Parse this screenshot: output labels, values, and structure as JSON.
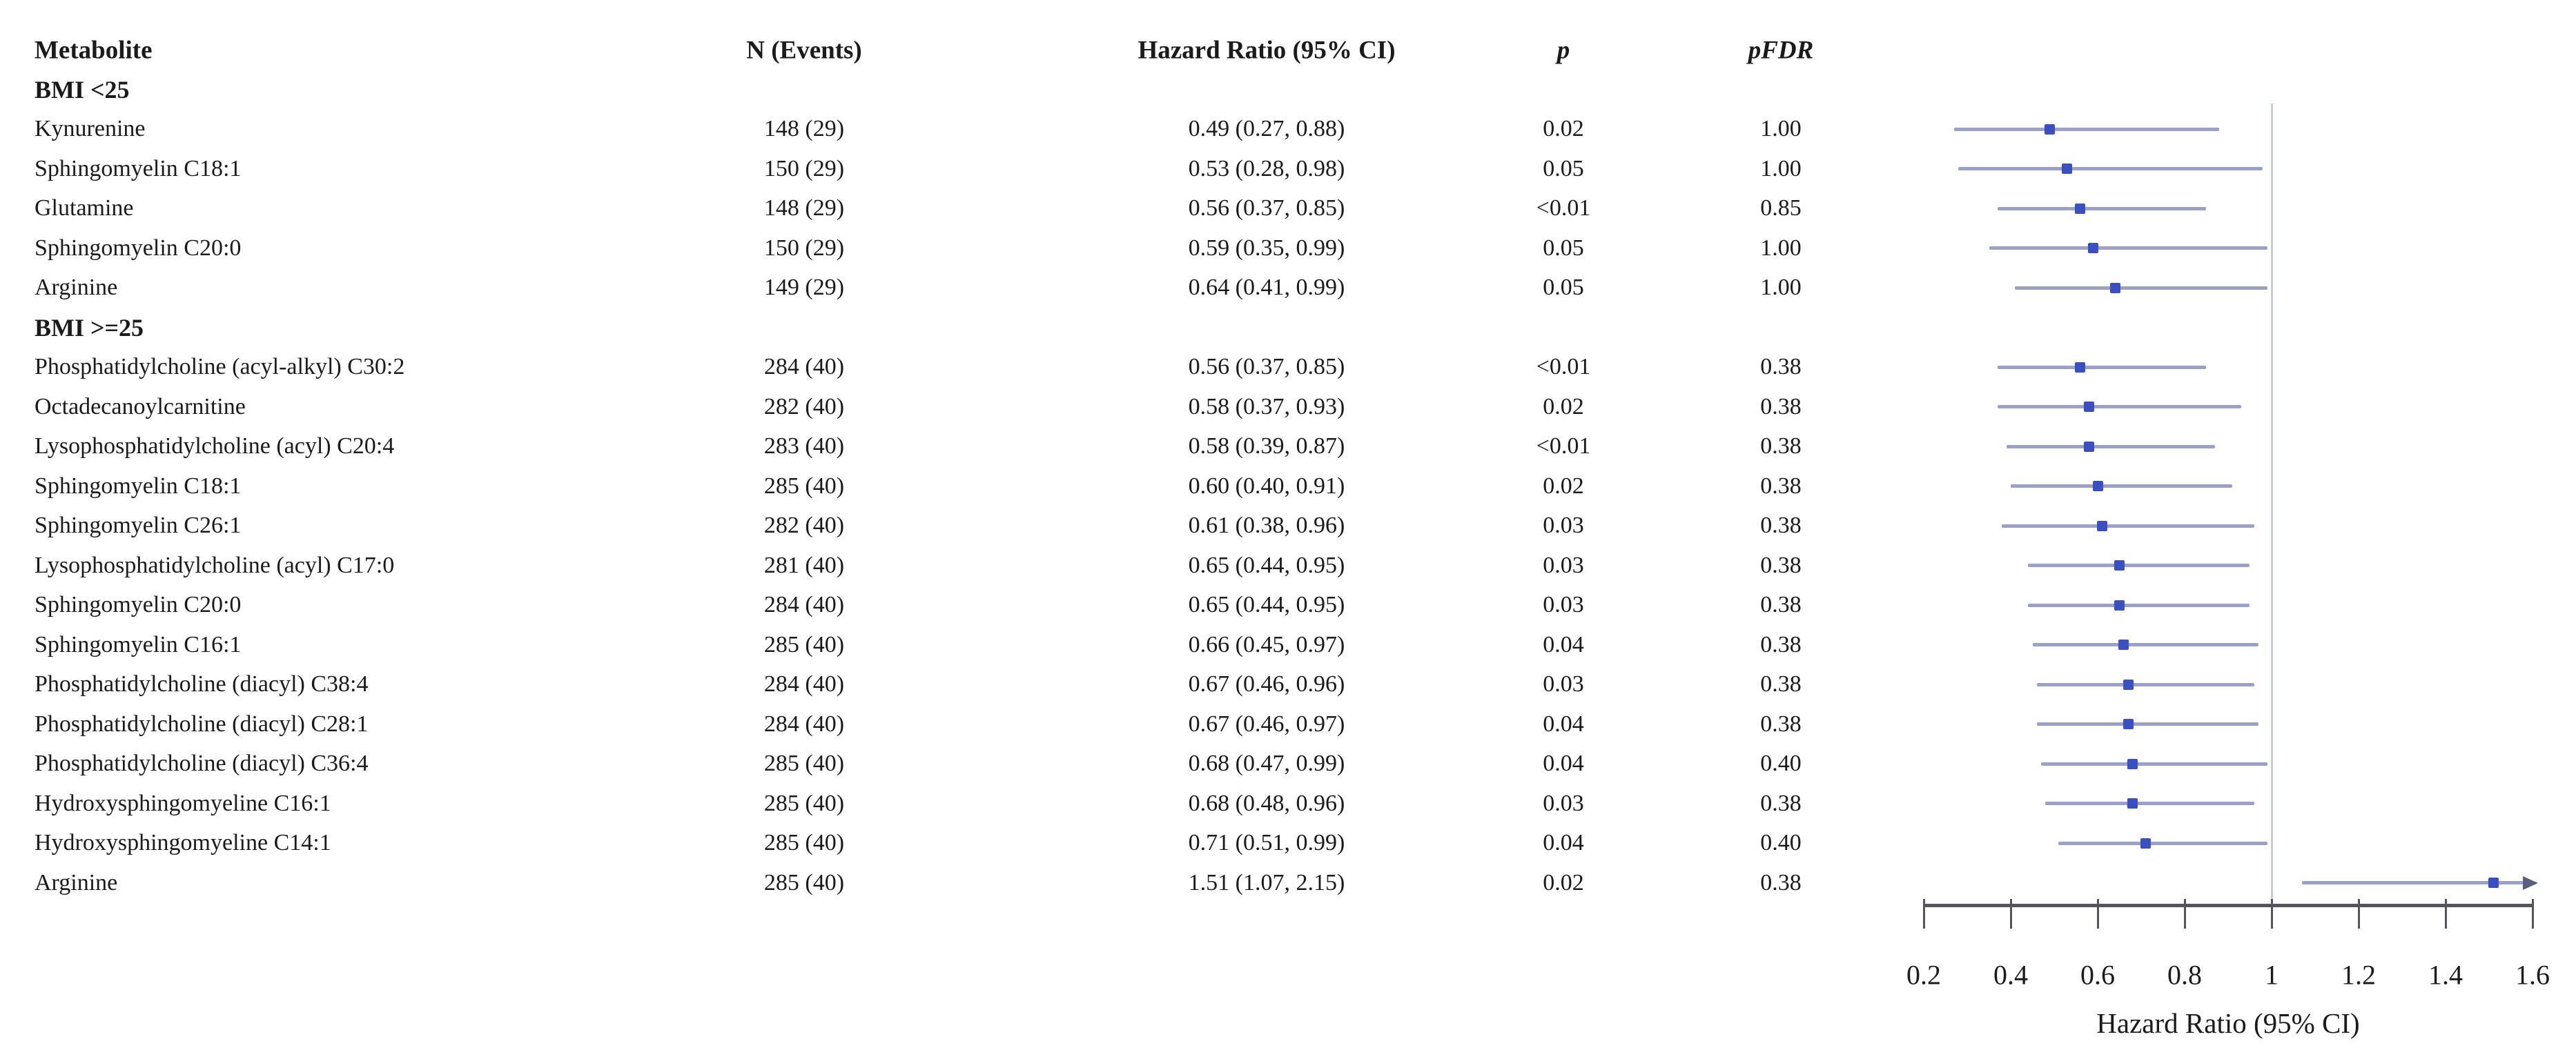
{
  "table_header": {
    "metabolite": "Metabolite",
    "n_events": "N (Events)",
    "hazard_ratio": "Hazard Ratio (95% CI)",
    "p": "p",
    "pfdr": "pFDR"
  },
  "colors": {
    "marker": "#3a50c2",
    "ci_line": "#9aa0c8",
    "arrow": "#5a5f80",
    "reference_line": "#c9cbd4",
    "axis": "#55565c",
    "text": "#1b1b1b"
  },
  "chart_data": {
    "type": "scatter",
    "subtype": "forest-plot",
    "title": "",
    "xlabel": "Hazard Ratio (95% CI)",
    "xlim": [
      0.2,
      1.6
    ],
    "xticks": [
      0.2,
      0.4,
      0.6,
      0.8,
      1,
      1.2,
      1.4,
      1.6
    ],
    "tick_labels": [
      "0.2",
      "0.4",
      "0.6",
      "0.8",
      "1",
      "1.2",
      "1.4",
      "1.6"
    ],
    "reference_line": 1.0,
    "legend": "none",
    "grid": false,
    "groups": [
      {
        "label": "BMI <25",
        "rows": [
          {
            "metabolite": "Kynurenine",
            "n_events": "148 (29)",
            "hr_ci_text": "0.49 (0.27, 0.88)",
            "p": "0.02",
            "pfdr": "1.00",
            "hr": 0.49,
            "ci_low": 0.27,
            "ci_high": 0.88,
            "clipped_right": false
          },
          {
            "metabolite": "Sphingomyelin C18:1",
            "n_events": "150 (29)",
            "hr_ci_text": "0.53 (0.28, 0.98)",
            "p": "0.05",
            "pfdr": "1.00",
            "hr": 0.53,
            "ci_low": 0.28,
            "ci_high": 0.98,
            "clipped_right": false
          },
          {
            "metabolite": "Glutamine",
            "n_events": "148 (29)",
            "hr_ci_text": "0.56 (0.37, 0.85)",
            "p": "<0.01",
            "pfdr": "0.85",
            "hr": 0.56,
            "ci_low": 0.37,
            "ci_high": 0.85,
            "clipped_right": false
          },
          {
            "metabolite": "Sphingomyelin C20:0",
            "n_events": "150 (29)",
            "hr_ci_text": "0.59 (0.35, 0.99)",
            "p": "0.05",
            "pfdr": "1.00",
            "hr": 0.59,
            "ci_low": 0.35,
            "ci_high": 0.99,
            "clipped_right": false
          },
          {
            "metabolite": "Arginine",
            "n_events": "149 (29)",
            "hr_ci_text": "0.64 (0.41, 0.99)",
            "p": "0.05",
            "pfdr": "1.00",
            "hr": 0.64,
            "ci_low": 0.41,
            "ci_high": 0.99,
            "clipped_right": false
          }
        ]
      },
      {
        "label": "BMI >=25",
        "rows": [
          {
            "metabolite": "Phosphatidylcholine (acyl-alkyl) C30:2",
            "n_events": "284 (40)",
            "hr_ci_text": "0.56 (0.37, 0.85)",
            "p": "<0.01",
            "pfdr": "0.38",
            "hr": 0.56,
            "ci_low": 0.37,
            "ci_high": 0.85,
            "clipped_right": false
          },
          {
            "metabolite": "Octadecanoylcarnitine",
            "n_events": "282 (40)",
            "hr_ci_text": "0.58 (0.37, 0.93)",
            "p": "0.02",
            "pfdr": "0.38",
            "hr": 0.58,
            "ci_low": 0.37,
            "ci_high": 0.93,
            "clipped_right": false
          },
          {
            "metabolite": "Lysophosphatidylcholine (acyl) C20:4",
            "n_events": "283 (40)",
            "hr_ci_text": "0.58 (0.39, 0.87)",
            "p": "<0.01",
            "pfdr": "0.38",
            "hr": 0.58,
            "ci_low": 0.39,
            "ci_high": 0.87,
            "clipped_right": false
          },
          {
            "metabolite": "Sphingomyelin C18:1",
            "n_events": "285 (40)",
            "hr_ci_text": "0.60 (0.40, 0.91)",
            "p": "0.02",
            "pfdr": "0.38",
            "hr": 0.6,
            "ci_low": 0.4,
            "ci_high": 0.91,
            "clipped_right": false
          },
          {
            "metabolite": "Sphingomyelin C26:1",
            "n_events": "282 (40)",
            "hr_ci_text": "0.61 (0.38, 0.96)",
            "p": "0.03",
            "pfdr": "0.38",
            "hr": 0.61,
            "ci_low": 0.38,
            "ci_high": 0.96,
            "clipped_right": false
          },
          {
            "metabolite": "Lysophosphatidylcholine (acyl) C17:0",
            "n_events": "281 (40)",
            "hr_ci_text": "0.65 (0.44, 0.95)",
            "p": "0.03",
            "pfdr": "0.38",
            "hr": 0.65,
            "ci_low": 0.44,
            "ci_high": 0.95,
            "clipped_right": false
          },
          {
            "metabolite": "Sphingomyelin C20:0",
            "n_events": "284 (40)",
            "hr_ci_text": "0.65 (0.44, 0.95)",
            "p": "0.03",
            "pfdr": "0.38",
            "hr": 0.65,
            "ci_low": 0.44,
            "ci_high": 0.95,
            "clipped_right": false
          },
          {
            "metabolite": "Sphingomyelin C16:1",
            "n_events": "285 (40)",
            "hr_ci_text": "0.66 (0.45, 0.97)",
            "p": "0.04",
            "pfdr": "0.38",
            "hr": 0.66,
            "ci_low": 0.45,
            "ci_high": 0.97,
            "clipped_right": false
          },
          {
            "metabolite": "Phosphatidylcholine (diacyl) C38:4",
            "n_events": "284 (40)",
            "hr_ci_text": "0.67 (0.46, 0.96)",
            "p": "0.03",
            "pfdr": "0.38",
            "hr": 0.67,
            "ci_low": 0.46,
            "ci_high": 0.96,
            "clipped_right": false
          },
          {
            "metabolite": "Phosphatidylcholine (diacyl) C28:1",
            "n_events": "284 (40)",
            "hr_ci_text": "0.67 (0.46, 0.97)",
            "p": "0.04",
            "pfdr": "0.38",
            "hr": 0.67,
            "ci_low": 0.46,
            "ci_high": 0.97,
            "clipped_right": false
          },
          {
            "metabolite": "Phosphatidylcholine (diacyl) C36:4",
            "n_events": "285 (40)",
            "hr_ci_text": "0.68 (0.47, 0.99)",
            "p": "0.04",
            "pfdr": "0.40",
            "hr": 0.68,
            "ci_low": 0.47,
            "ci_high": 0.99,
            "clipped_right": false
          },
          {
            "metabolite": "Hydroxysphingomyeline C16:1",
            "n_events": "285 (40)",
            "hr_ci_text": "0.68 (0.48, 0.96)",
            "p": "0.03",
            "pfdr": "0.38",
            "hr": 0.68,
            "ci_low": 0.48,
            "ci_high": 0.96,
            "clipped_right": false
          },
          {
            "metabolite": "Hydroxysphingomyeline C14:1",
            "n_events": "285 (40)",
            "hr_ci_text": "0.71 (0.51, 0.99)",
            "p": "0.04",
            "pfdr": "0.40",
            "hr": 0.71,
            "ci_low": 0.51,
            "ci_high": 0.99,
            "clipped_right": false
          },
          {
            "metabolite": "Arginine",
            "n_events": "285 (40)",
            "hr_ci_text": "1.51 (1.07, 2.15)",
            "p": "0.02",
            "pfdr": "0.38",
            "hr": 1.51,
            "ci_low": 1.07,
            "ci_high": 2.15,
            "clipped_right": true
          }
        ]
      }
    ]
  }
}
